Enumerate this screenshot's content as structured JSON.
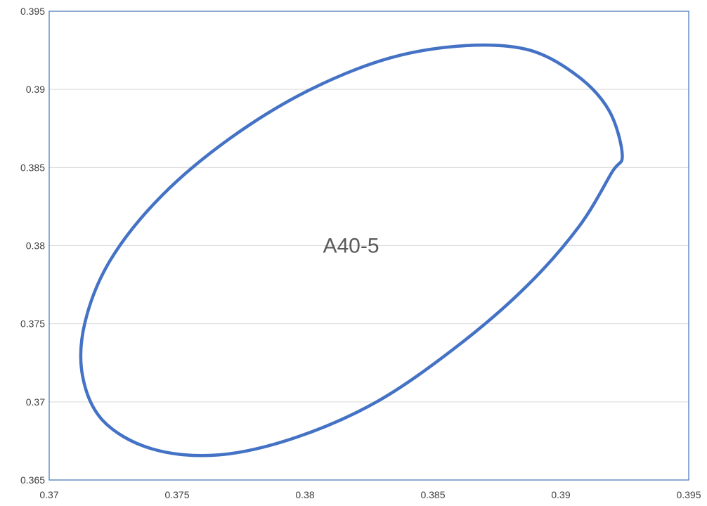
{
  "chart_data": {
    "type": "scatter",
    "title": "",
    "xlabel": "",
    "ylabel": "",
    "xlim": [
      0.37,
      0.395
    ],
    "ylim": [
      0.365,
      0.395
    ],
    "x_ticks": [
      "0.37",
      "0.375",
      "0.38",
      "0.385",
      "0.39",
      "0.395"
    ],
    "y_ticks": [
      "0.365",
      "0.37",
      "0.375",
      "0.38",
      "0.385",
      "0.39",
      "0.395"
    ],
    "grid": true,
    "legend": "none",
    "annotations": [
      {
        "text": "A40-5",
        "x": 0.3818,
        "y": 0.38
      }
    ],
    "series": [
      {
        "color": "#4472C4",
        "x": [
          0.3924,
          0.3919,
          0.3907,
          0.3888,
          0.3863,
          0.3833,
          0.3801,
          0.3771,
          0.3744,
          0.3724,
          0.3714,
          0.3713,
          0.3721,
          0.374,
          0.3766,
          0.3796,
          0.3828,
          0.3859,
          0.3886,
          0.3907,
          0.392,
          0.3924
        ],
        "y": [
          0.3858,
          0.3886,
          0.3908,
          0.3925,
          0.3928,
          0.392,
          0.3899,
          0.3869,
          0.3832,
          0.3791,
          0.3751,
          0.3717,
          0.3688,
          0.367,
          0.3666,
          0.3677,
          0.37,
          0.3735,
          0.3773,
          0.3812,
          0.3847,
          0.3858
        ]
      }
    ]
  }
}
